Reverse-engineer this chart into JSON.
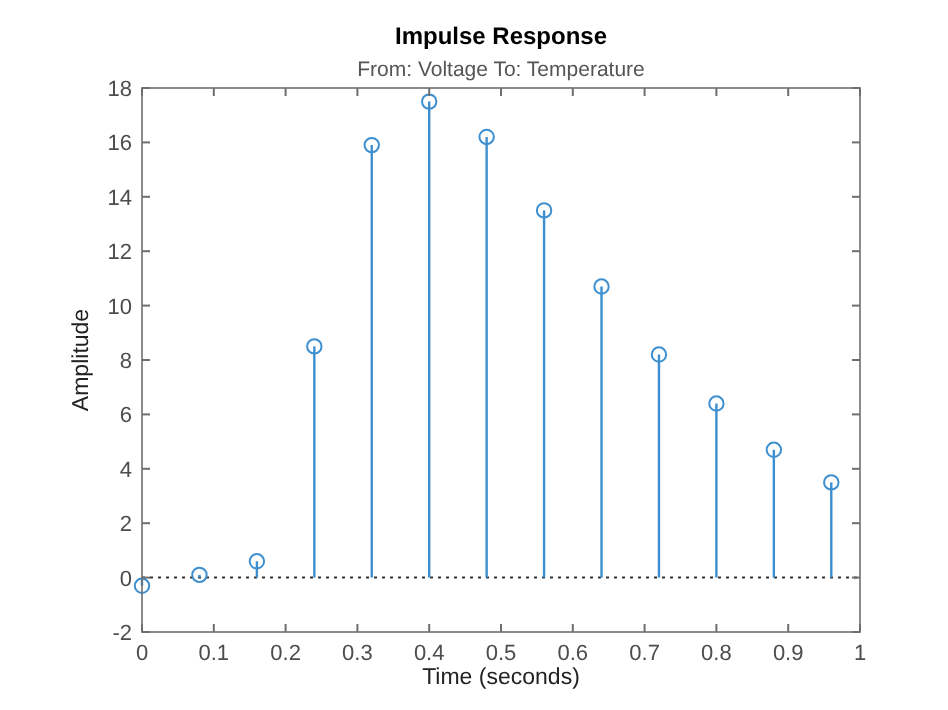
{
  "chart_data": {
    "type": "lollipop",
    "title": "Impulse Response",
    "subtitle": "From: Voltage  To: Temperature",
    "xlabel": "Time (seconds)",
    "ylabel": "Amplitude",
    "x": [
      0,
      0.08,
      0.16,
      0.24,
      0.32,
      0.4,
      0.48,
      0.56,
      0.64,
      0.72,
      0.8,
      0.88,
      0.96
    ],
    "series": [
      {
        "color": "#3d8fcf",
        "values": [
          -0.3,
          0.1,
          0.6,
          8.5,
          15.9,
          17.5,
          16.2,
          13.5,
          10.7,
          8.2,
          6.4,
          4.7,
          3.5
        ]
      }
    ],
    "xlim": [
      0,
      1
    ],
    "xticks": [
      0,
      0.1,
      0.2,
      0.3,
      0.4,
      0.5,
      0.6,
      0.7,
      0.8,
      0.9,
      1
    ],
    "ylim": [
      -2,
      18
    ],
    "yticks": [
      -2,
      0,
      2,
      4,
      6,
      8,
      10,
      12,
      14,
      16,
      18
    ],
    "marker": "circle",
    "grid": false,
    "ref_lines": [
      {
        "axis": "y",
        "value": 0,
        "color": "#333333",
        "line_style": "dotted"
      }
    ]
  }
}
